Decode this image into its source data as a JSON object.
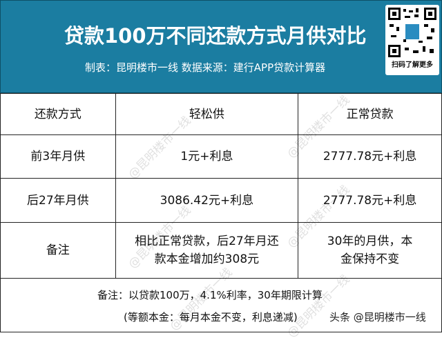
{
  "header": {
    "title": "贷款100万不同还款方式月供对比",
    "subtitle": "制表：昆明楼市一线  数据来源：建行APP贷款计算器",
    "qr_label": "扫码了解更多",
    "bg_color": "#1b7da1"
  },
  "table": {
    "headers": [
      "还款方式",
      "轻松供",
      "正常贷款"
    ],
    "rows": [
      [
        "前3年月供",
        "1元+利息",
        "2777.78元+利息"
      ],
      [
        "后27年月供",
        "3086.42元+利息",
        "2777.78元+利息"
      ],
      [
        "备注",
        "相比正常贷款，后27年月还款本金增加约308元",
        "30年的月供，本金保持不变"
      ]
    ]
  },
  "note": {
    "line1": "备注：以贷款100万，4.1%利率，30年期限计算",
    "line2": "(等额本金：每月本金不变，利息递减)"
  },
  "brand": "头条 @昆明楼市一线",
  "watermark": "@昆明楼市一线"
}
